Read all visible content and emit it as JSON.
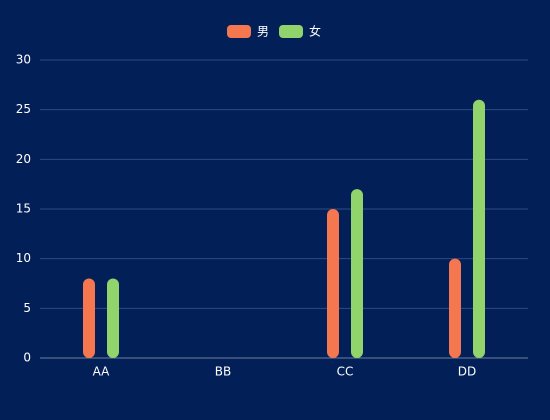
{
  "chart_data": {
    "type": "bar",
    "categories": [
      "AA",
      "BB",
      "CC",
      "DD"
    ],
    "series": [
      {
        "name": "男",
        "color": "#f4774f",
        "values": [
          8,
          0,
          15,
          10
        ]
      },
      {
        "name": "女",
        "color": "#91d46c",
        "values": [
          8,
          0,
          17,
          26
        ]
      }
    ],
    "ylim": [
      0,
      30
    ],
    "yticks": [
      0,
      5,
      10,
      15,
      20,
      25,
      30
    ],
    "grid": true,
    "legend": "top"
  }
}
